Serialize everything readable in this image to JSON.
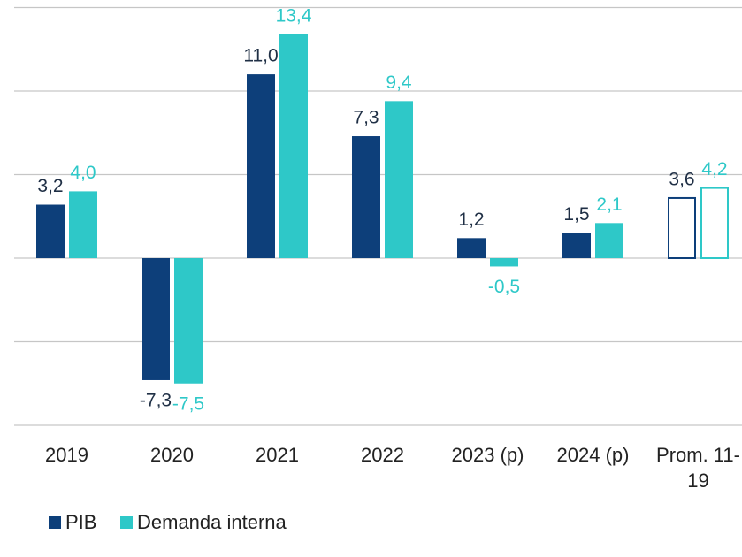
{
  "chart_data": {
    "type": "bar",
    "categories": [
      "2019",
      "2020",
      "2021",
      "2022",
      "2023 (p)",
      "2024 (p)",
      "Prom. 11-19"
    ],
    "series": [
      {
        "name": "PIB",
        "color": "#0d3f7a",
        "values": [
          3.2,
          -7.3,
          11.0,
          7.3,
          1.2,
          1.5,
          3.6
        ],
        "value_labels": [
          "3,2",
          "-7,3",
          "11,0",
          "7,3",
          "1,2",
          "1,5",
          "3,6"
        ]
      },
      {
        "name": "Demanda interna",
        "color": "#2ec8c8",
        "values": [
          4.0,
          -7.5,
          13.4,
          9.4,
          -0.5,
          2.1,
          4.2
        ],
        "value_labels": [
          "4,0",
          "-7,5",
          "13,4",
          "9,4",
          "-0,5",
          "2,1",
          "4,2"
        ]
      }
    ],
    "outlined_categories": [
      6
    ],
    "ylim": [
      -10,
      15
    ],
    "yticks": [
      -10,
      -5,
      0,
      5,
      10,
      15
    ],
    "grid": true,
    "legend": "bottom"
  }
}
